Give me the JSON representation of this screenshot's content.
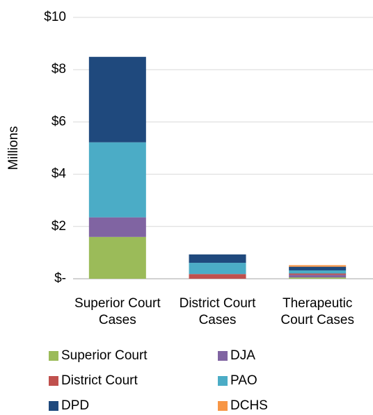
{
  "chart_data": {
    "type": "stacked_bar",
    "y_axis_label": "Millions",
    "categories": [
      "Superior Court Cases",
      "District Court Cases",
      "Therapeutic Court Cases"
    ],
    "series": [
      {
        "name": "Superior Court",
        "color": "#9bbb59",
        "values": [
          1.6,
          0,
          0.05
        ]
      },
      {
        "name": "DJA",
        "color": "#8064a2",
        "values": [
          0.75,
          0,
          0.1
        ]
      },
      {
        "name": "District Court",
        "color": "#c0504d",
        "values": [
          0,
          0.18,
          0.05
        ]
      },
      {
        "name": "PAO",
        "color": "#4bacc6",
        "values": [
          2.87,
          0.43,
          0.12
        ]
      },
      {
        "name": "DPD",
        "color": "#1f497d",
        "values": [
          3.27,
          0.32,
          0.14
        ]
      },
      {
        "name": "DCHS",
        "color": "#f79646",
        "values": [
          0,
          0,
          0.06
        ]
      }
    ],
    "ylim": [
      0,
      10
    ],
    "yticks": [
      {
        "value": 0,
        "label": "$-"
      },
      {
        "value": 2,
        "label": "$2"
      },
      {
        "value": 4,
        "label": "$4"
      },
      {
        "value": 6,
        "label": "$6"
      },
      {
        "value": 8,
        "label": "$8"
      },
      {
        "value": 10,
        "label": "$10"
      }
    ],
    "grid": true,
    "legend": "bottom"
  }
}
